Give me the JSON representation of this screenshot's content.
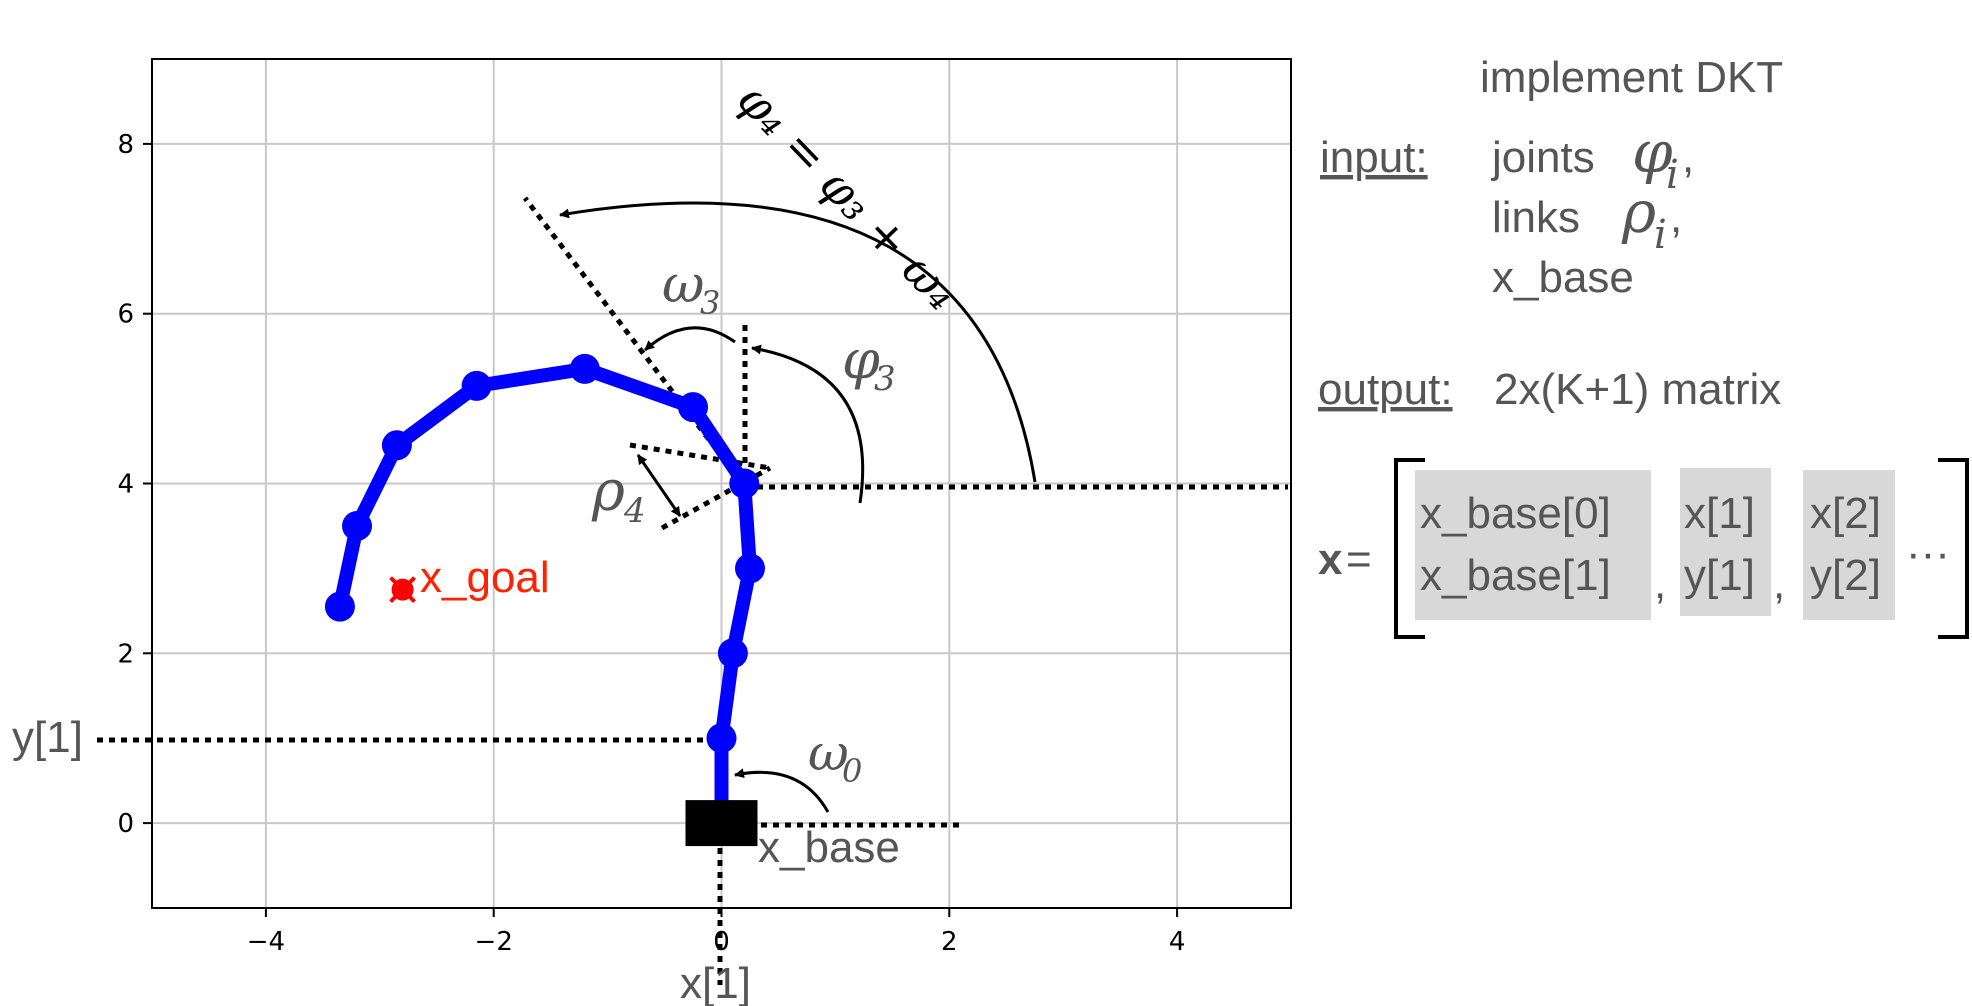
{
  "chart_data": {
    "type": "line",
    "xlim": [
      -5,
      5
    ],
    "ylim": [
      -1,
      9
    ],
    "xticks": [
      -4,
      -2,
      0,
      2,
      4
    ],
    "yticks": [
      0,
      2,
      4,
      6,
      8
    ],
    "grid": true,
    "series": [
      {
        "color": "#0000ff",
        "x": [
          0.0,
          0.0,
          0.1,
          0.25,
          0.2,
          -0.25,
          -1.2,
          -2.15,
          -2.85,
          -3.2,
          -3.35
        ],
        "y": [
          0.0,
          1.0,
          2.0,
          3.0,
          4.0,
          4.9,
          5.35,
          5.15,
          4.45,
          3.5,
          2.55
        ]
      }
    ],
    "base": {
      "x": 0.0,
      "y": 0.0
    },
    "goal": {
      "x": -2.8,
      "y": 2.75,
      "color": "#ff0000"
    }
  },
  "labels": {
    "x_goal": "x_goal",
    "x_base": "x_base",
    "y1": "y[1]",
    "x1": "x[1]",
    "omega0": "ω",
    "omega0_sub": "0",
    "omega3": "ω",
    "omega3_sub": "3",
    "phi3": "φ",
    "phi3_sub": "3",
    "rho4": "ρ",
    "rho4_sub": "4",
    "phi4_eq": "φ₄ = φ₃ + ω₄"
  },
  "panel": {
    "title": "implement DKT",
    "input_label": "input:",
    "joints": "joints",
    "joints_sym": "φ",
    "joints_sub": "i",
    "links": "links",
    "links_sym": "ρ",
    "links_sub": "i",
    "comma": ",",
    "x_base": "x_base",
    "output_label": "output:",
    "output_text": "2x(K+1) matrix",
    "matrix_lhs": "x",
    "matrix_eq": "=",
    "col0_top": "x_base[0]",
    "col0_bot": "x_base[1]",
    "col1_top": "x[1]",
    "col1_bot": "y[1]",
    "col2_top": "x[2]",
    "col2_bot": "y[2]",
    "dots": "···"
  }
}
